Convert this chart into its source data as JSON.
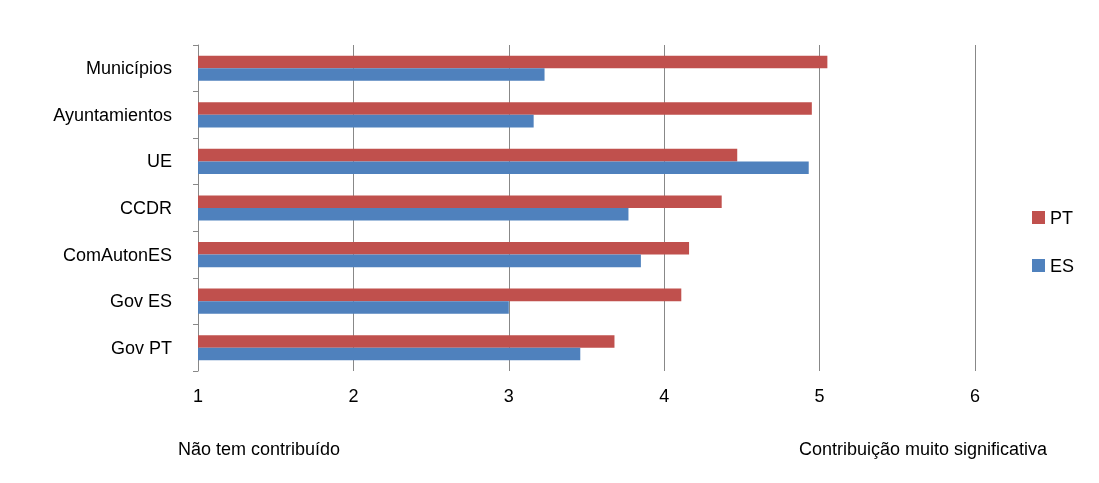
{
  "chart_data": {
    "type": "bar",
    "orientation": "horizontal",
    "categories": [
      "Municípios",
      "Ayuntamientos",
      "UE",
      "CCDR",
      "ComAutonES",
      "Gov ES",
      "Gov PT"
    ],
    "series": [
      {
        "name": "PT",
        "color": "#c0504d",
        "values": [
          5.05,
          4.95,
          4.47,
          4.37,
          4.16,
          4.11,
          3.68
        ]
      },
      {
        "name": "ES",
        "color": "#4f81bd",
        "values": [
          3.23,
          3.16,
          4.93,
          3.77,
          3.85,
          3.0,
          3.46
        ]
      }
    ],
    "xlim": [
      1,
      6
    ],
    "xticks": [
      1,
      2,
      3,
      4,
      5,
      6
    ],
    "grid": "x",
    "legend": "right",
    "annotations": [
      "Não tem contribuído",
      "Contribuição muito significativa"
    ]
  }
}
